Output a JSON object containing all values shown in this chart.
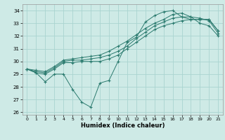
{
  "xlabel": "Humidex (Indice chaleur)",
  "bg_color": "#ceeae6",
  "grid_color": "#aad4d0",
  "line_color": "#2a7a6e",
  "xlim": [
    -0.5,
    21.5
  ],
  "ylim": [
    25.8,
    34.5
  ],
  "xticks": [
    0,
    1,
    2,
    3,
    4,
    5,
    6,
    7,
    8,
    9,
    10,
    11,
    12,
    13,
    14,
    15,
    16,
    17,
    18,
    19,
    20,
    21
  ],
  "yticks": [
    26,
    27,
    28,
    29,
    30,
    31,
    32,
    33,
    34
  ],
  "series": [
    [
      29.4,
      29.1,
      28.4,
      29.0,
      29.0,
      27.8,
      26.8,
      26.4,
      28.3,
      28.5,
      30.0,
      31.5,
      31.9,
      33.1,
      33.6,
      33.9,
      34.0,
      33.5,
      33.3,
      33.3,
      33.3,
      32.4
    ],
    [
      29.4,
      29.1,
      29.0,
      29.4,
      29.9,
      29.9,
      30.0,
      30.0,
      30.0,
      30.2,
      30.5,
      31.0,
      31.5,
      32.0,
      32.5,
      32.8,
      33.0,
      33.2,
      33.3,
      33.3,
      33.3,
      32.4
    ],
    [
      29.4,
      29.2,
      29.1,
      29.5,
      30.0,
      30.1,
      30.1,
      30.2,
      30.3,
      30.5,
      30.8,
      31.2,
      31.8,
      32.3,
      32.8,
      33.1,
      33.4,
      33.5,
      33.5,
      33.4,
      33.2,
      32.2
    ],
    [
      29.4,
      29.3,
      29.2,
      29.6,
      30.1,
      30.2,
      30.3,
      30.4,
      30.5,
      30.8,
      31.2,
      31.6,
      32.1,
      32.6,
      33.0,
      33.3,
      33.7,
      33.8,
      33.5,
      33.0,
      32.8,
      32.0
    ]
  ]
}
